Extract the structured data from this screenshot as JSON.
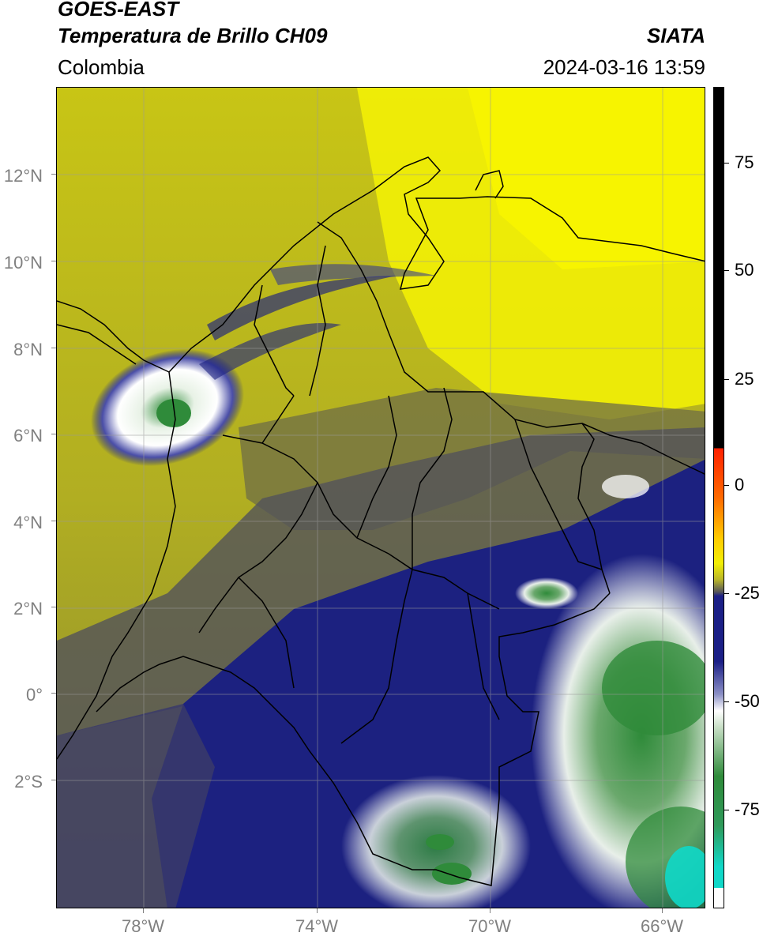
{
  "header": {
    "satellite": "GOES-EAST",
    "product": "Temperatura de Brillo CH09",
    "source": "SIATA",
    "region": "Colombia",
    "timestamp": "2024-03-16 13:59"
  },
  "map": {
    "lat_labels": [
      "12°N",
      "10°N",
      "8°N",
      "6°N",
      "4°N",
      "2°N",
      "0°",
      "2°S"
    ],
    "lon_labels": [
      "78°W",
      "74°W",
      "70°W",
      "66°W"
    ],
    "colors": {
      "warm": "#f2ef05",
      "mid": "#525258",
      "cold": "#1c2180",
      "very_cold": "#ffffff",
      "cloud_top": "#2f8b3a"
    }
  },
  "colorbar": {
    "labels": [
      "75",
      "50",
      "25",
      "0",
      "-25",
      "-50",
      "-75"
    ],
    "colors": [
      "#000000",
      "#ff0000",
      "#ffcc00",
      "#f2ef05",
      "#55555a",
      "#1b1f86",
      "#ffffff",
      "#2f8b3a",
      "#10d8c8",
      "#ffffff"
    ]
  }
}
